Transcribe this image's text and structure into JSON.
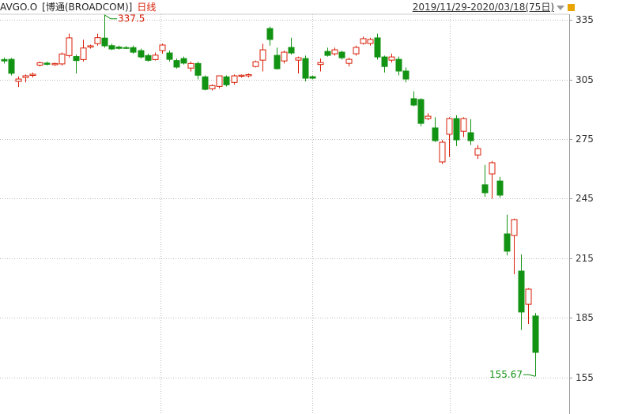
{
  "chart_data": {
    "type": "candlestick",
    "ticker": "AVGO.O",
    "name": "[博通(BROADCOM)]",
    "period": "日线",
    "range": "2019/11/29-2020/03/18(75日)",
    "open": [
      315.0,
      315.1,
      304,
      306,
      307,
      312.2,
      313.2,
      312.4,
      312.8,
      317,
      316.5,
      315,
      321.3,
      323,
      325.8,
      322,
      321.3,
      321,
      321,
      319.5,
      317,
      315,
      319.5,
      318.3,
      314.5,
      315.5,
      310.7,
      313,
      306.3,
      300.3,
      301.5,
      306.3,
      303.5,
      306.6,
      306.8,
      311.5,
      314.7,
      330.6,
      317.1,
      314.3,
      321.1,
      314.7,
      315.5,
      306.4,
      312.5,
      319.1,
      317.9,
      318.7,
      313.1,
      317.9,
      323.1,
      323.1,
      325.9,
      316.3,
      314.7,
      315.1,
      309.2,
      295.3,
      294.9,
      285.3,
      280.6,
      263.5,
      277.4,
      285.3,
      278.9,
      278.2,
      267,
      252,
      257.5,
      253.9,
      227.3,
      226.5,
      208.6,
      191.9,
      186
    ],
    "high": [
      316,
      315.8,
      306.5,
      307.5,
      308.5,
      314,
      314,
      313.5,
      318.5,
      328,
      317.5,
      325,
      322.5,
      328,
      337.5,
      323,
      322,
      321.8,
      322,
      320.5,
      318,
      318.5,
      323,
      319.5,
      315.5,
      316.5,
      314,
      314,
      307,
      302.5,
      306,
      307,
      307.5,
      307.5,
      308,
      314.5,
      323,
      331.58,
      321,
      319.5,
      326,
      316.5,
      317,
      307,
      315.5,
      321,
      321,
      319.5,
      316,
      322,
      326.5,
      326,
      328,
      317,
      318,
      316.5,
      311,
      299,
      295.5,
      288,
      286,
      274.5,
      286,
      287,
      286,
      285,
      272,
      262,
      264,
      256,
      237,
      235,
      217,
      200,
      187.5
    ],
    "low": [
      313,
      307,
      301.2,
      303.5,
      306,
      311.5,
      312,
      311.8,
      312,
      316,
      308,
      314,
      320.5,
      322,
      321,
      319.8,
      320,
      320.3,
      318,
      315.5,
      314,
      314.5,
      318,
      314,
      310.5,
      312.5,
      309,
      305,
      299.5,
      299.5,
      300.5,
      301.5,
      302.5,
      306,
      306,
      311,
      309,
      322,
      310,
      313,
      317.5,
      308,
      304,
      305,
      309,
      316.5,
      317,
      315,
      311.5,
      317,
      322.5,
      322,
      315,
      308.5,
      313.5,
      307,
      303.5,
      291.5,
      281.5,
      284.5,
      273.5,
      262.5,
      266,
      271.5,
      276,
      272,
      265,
      246,
      245,
      245.5,
      216.5,
      207,
      179,
      182,
      155.67
    ],
    "close": [
      314.3,
      308.1,
      305.2,
      306.8,
      307.6,
      313.4,
      312.6,
      313,
      317.8,
      325.9,
      314.5,
      320.8,
      321.9,
      326,
      321.9,
      320.3,
      320.6,
      320.8,
      318.7,
      316.3,
      314.6,
      317.2,
      322.3,
      315.1,
      311.2,
      313.2,
      313,
      307.1,
      300,
      301.9,
      306.8,
      302.3,
      306.8,
      307.1,
      307.4,
      313.9,
      319.9,
      325.1,
      310.4,
      318.7,
      318.3,
      315.9,
      305.6,
      305.6,
      313.5,
      317.1,
      319.9,
      315.9,
      315.1,
      321.1,
      325.5,
      325.1,
      316.3,
      311.5,
      316.3,
      309.2,
      305.2,
      292.1,
      282.9,
      286.5,
      274.2,
      273.4,
      285.3,
      274.6,
      285.3,
      274.2,
      270.2,
      248,
      263.1,
      246.8,
      218.6,
      234.5,
      188,
      199.5,
      167.7
    ],
    "up_color": "#d81e06",
    "down_color": "#139313",
    "ylim": [
      136.7,
      337.8
    ],
    "yticks": [
      155,
      185,
      215,
      245,
      275,
      305,
      335
    ],
    "grid": true
  }
}
